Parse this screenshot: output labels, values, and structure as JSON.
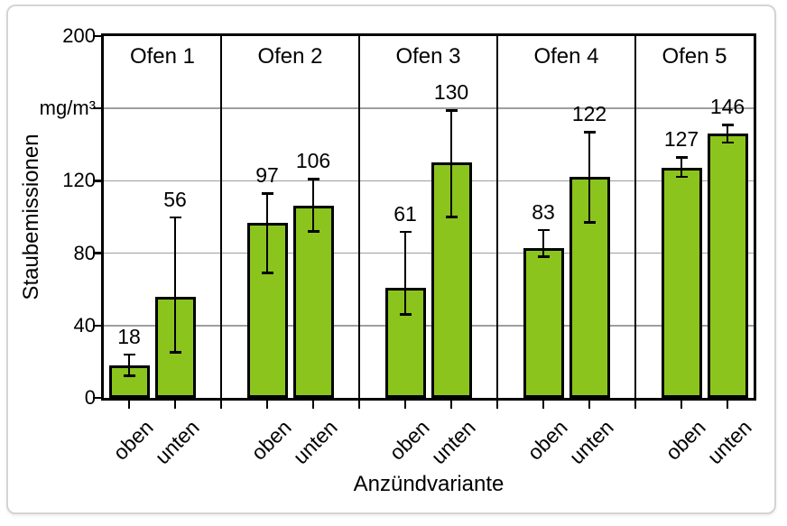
{
  "chart_data": {
    "type": "bar",
    "title": "",
    "ylabel": "Staubemissionen",
    "xlabel": "Anzündvariante",
    "unit": "mg/m³",
    "ylim": [
      0,
      200
    ],
    "grid_on": true,
    "grid_values": [
      40,
      80,
      120,
      160
    ],
    "yticks": [
      {
        "value": 0,
        "label": "0"
      },
      {
        "value": 40,
        "label": "40"
      },
      {
        "value": 80,
        "label": "80"
      },
      {
        "value": 120,
        "label": "120"
      },
      {
        "value": 160,
        "label": "mg/m³"
      },
      {
        "value": 200,
        "label": "200"
      }
    ],
    "legend": "none",
    "error_bars": true,
    "panels": [
      {
        "label": "Ofen 1",
        "bars": [
          {
            "category": "oben",
            "value": 18,
            "err_lo": 12,
            "err_hi": 24
          },
          {
            "category": "unten",
            "value": 56,
            "err_lo": 25,
            "err_hi": 100
          }
        ]
      },
      {
        "label": "Ofen 2",
        "bars": [
          {
            "category": "oben",
            "value": 97,
            "err_lo": 69,
            "err_hi": 113
          },
          {
            "category": "unten",
            "value": 106,
            "err_lo": 92,
            "err_hi": 121
          }
        ]
      },
      {
        "label": "Ofen 3",
        "bars": [
          {
            "category": "oben",
            "value": 61,
            "err_lo": 46,
            "err_hi": 92
          },
          {
            "category": "unten",
            "value": 130,
            "err_lo": 100,
            "err_hi": 159
          }
        ]
      },
      {
        "label": "Ofen 4",
        "bars": [
          {
            "category": "oben",
            "value": 83,
            "err_lo": 78,
            "err_hi": 93
          },
          {
            "category": "unten",
            "value": 122,
            "err_lo": 97,
            "err_hi": 147
          }
        ]
      },
      {
        "label": "Ofen 5",
        "bars": [
          {
            "category": "oben",
            "value": 127,
            "err_lo": 122,
            "err_hi": 133
          },
          {
            "category": "unten",
            "value": 146,
            "err_lo": 141,
            "err_hi": 151
          }
        ]
      }
    ],
    "colors": {
      "bar_fill": "#8bc41d",
      "bar_stroke": "#000000",
      "grid": "#9e9e9e",
      "frame": "#000000",
      "card_border": "#d4d4d4"
    }
  }
}
